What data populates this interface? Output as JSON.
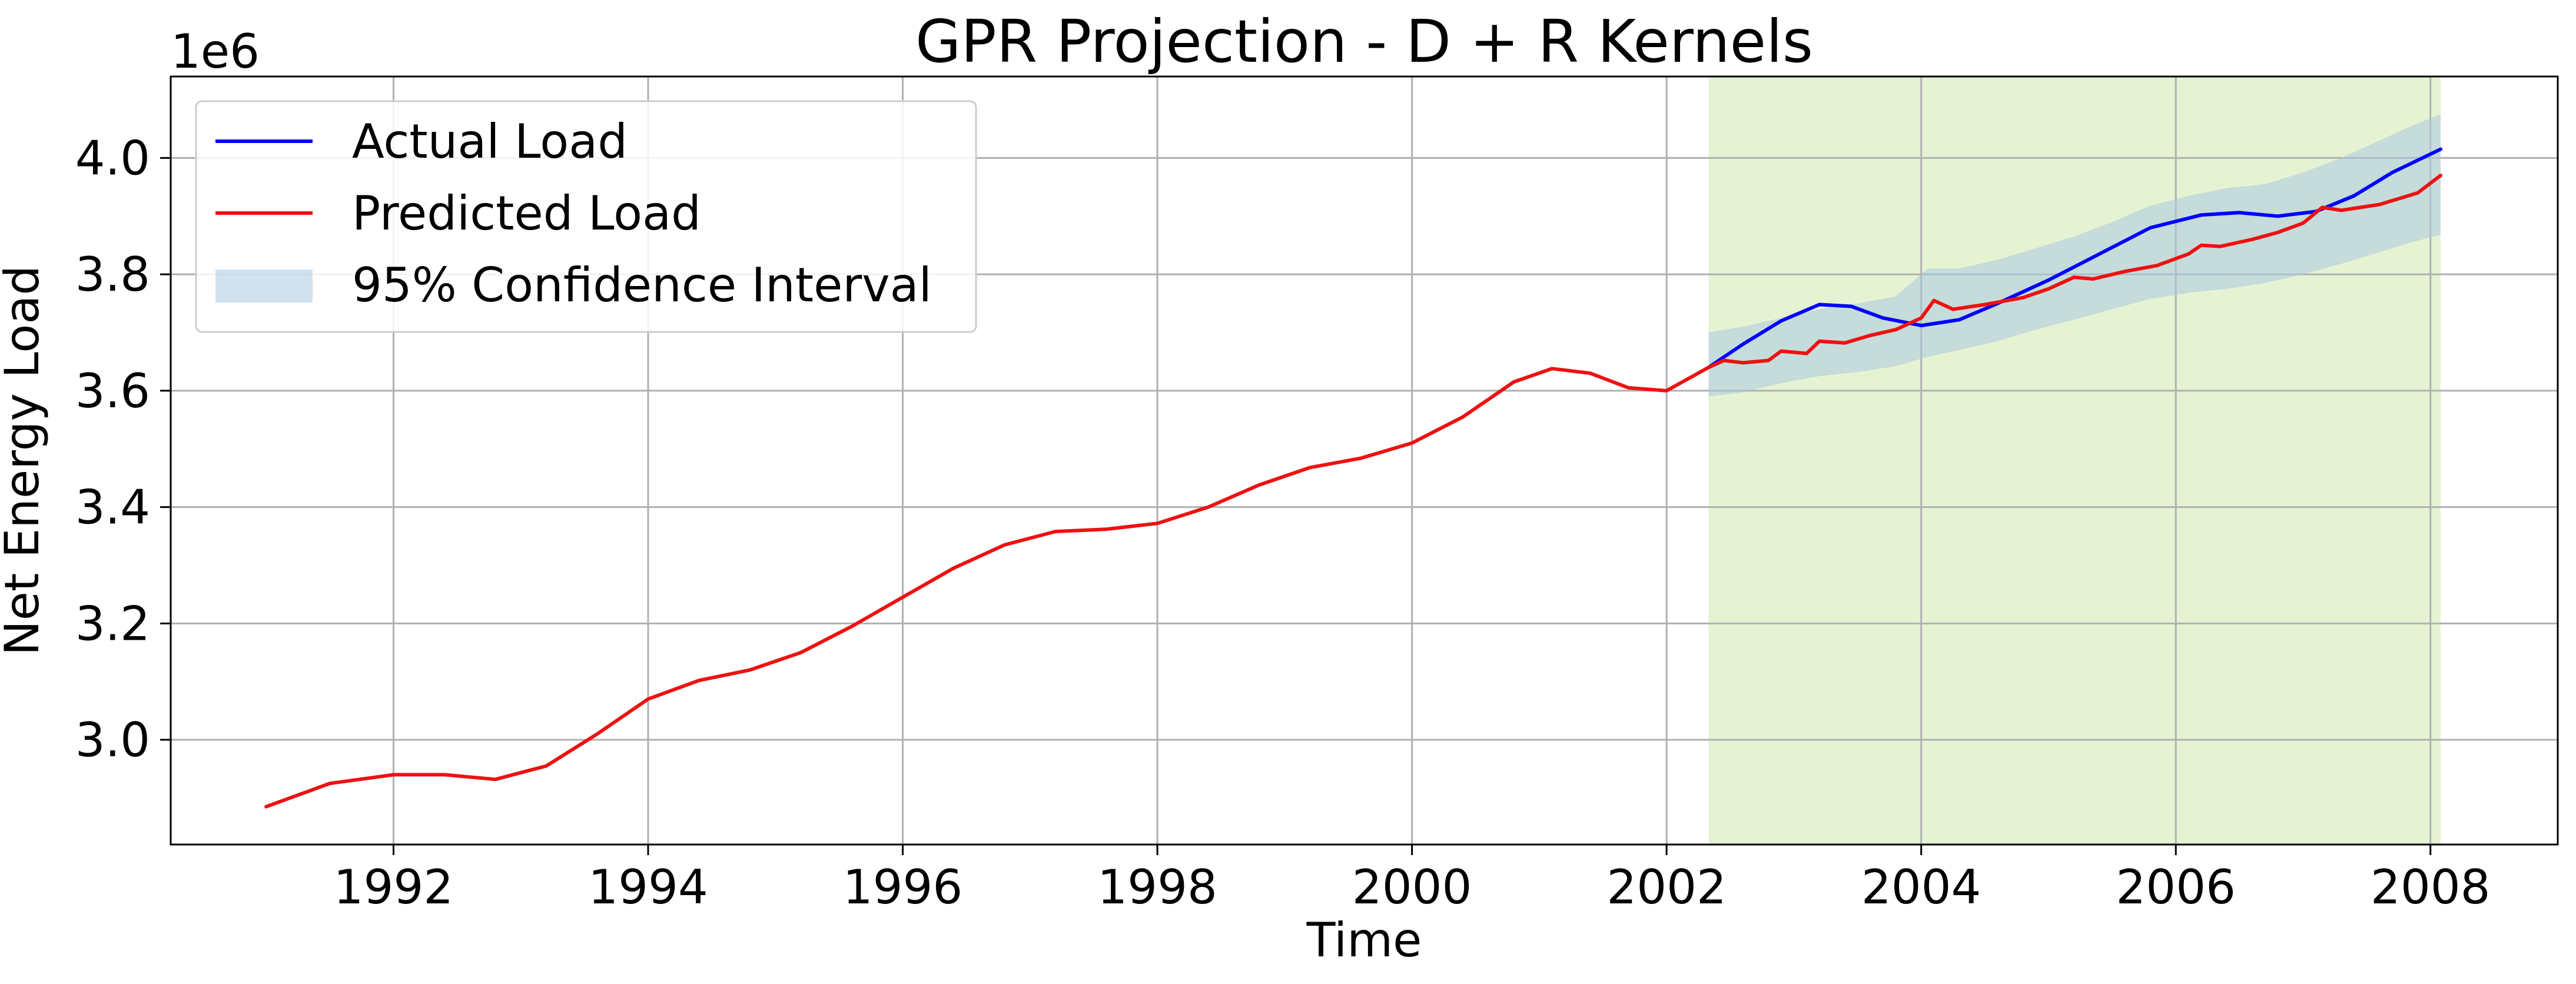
{
  "chart_data": {
    "type": "line",
    "title": "GPR Projection - D + R Kernels",
    "xlabel": "Time",
    "ylabel": "Net Energy Load",
    "y_offset_label": "1e6",
    "xlim": [
      1990.25,
      2009.0
    ],
    "ylim": [
      2820000,
      4140000
    ],
    "x_ticks": [
      1992,
      1994,
      1996,
      1998,
      2000,
      2002,
      2004,
      2006,
      2008
    ],
    "x_tick_labels": [
      "1992",
      "1994",
      "1996",
      "1998",
      "2000",
      "2002",
      "2004",
      "2006",
      "2008"
    ],
    "y_ticks": [
      3000000,
      3200000,
      3400000,
      3600000,
      3800000,
      4000000
    ],
    "y_tick_labels": [
      "3.0",
      "3.2",
      "3.4",
      "3.6",
      "3.8",
      "4.0"
    ],
    "grid": true,
    "legend_position": "upper-left",
    "forecast_region": {
      "x_start": 2002.33,
      "x_end": 2008.08,
      "color": "#e6f3d3"
    },
    "series": [
      {
        "name": "Actual Load",
        "color": "#0000ff",
        "points": [
          [
            2002.33,
            3640000
          ],
          [
            2002.6,
            3680000
          ],
          [
            2002.9,
            3720000
          ],
          [
            2003.2,
            3748000
          ],
          [
            2003.45,
            3745000
          ],
          [
            2003.7,
            3725000
          ],
          [
            2004.0,
            3712000
          ],
          [
            2004.3,
            3722000
          ],
          [
            2004.6,
            3750000
          ],
          [
            2005.0,
            3790000
          ],
          [
            2005.4,
            3835000
          ],
          [
            2005.8,
            3880000
          ],
          [
            2006.2,
            3902000
          ],
          [
            2006.5,
            3906000
          ],
          [
            2006.8,
            3900000
          ],
          [
            2007.1,
            3908000
          ],
          [
            2007.4,
            3935000
          ],
          [
            2007.7,
            3975000
          ],
          [
            2008.08,
            4015000
          ]
        ]
      },
      {
        "name": "Predicted Load",
        "color": "#ee1111",
        "points": [
          [
            1991.0,
            2885000
          ],
          [
            1991.5,
            2925000
          ],
          [
            1992.0,
            2940000
          ],
          [
            1992.4,
            2940000
          ],
          [
            1992.8,
            2932000
          ],
          [
            1993.2,
            2955000
          ],
          [
            1993.6,
            3010000
          ],
          [
            1994.0,
            3070000
          ],
          [
            1994.4,
            3102000
          ],
          [
            1994.8,
            3120000
          ],
          [
            1995.2,
            3150000
          ],
          [
            1995.6,
            3195000
          ],
          [
            1996.0,
            3245000
          ],
          [
            1996.4,
            3295000
          ],
          [
            1996.8,
            3335000
          ],
          [
            1997.2,
            3358000
          ],
          [
            1997.6,
            3362000
          ],
          [
            1998.0,
            3372000
          ],
          [
            1998.4,
            3400000
          ],
          [
            1998.8,
            3438000
          ],
          [
            1999.2,
            3468000
          ],
          [
            1999.6,
            3484000
          ],
          [
            2000.0,
            3510000
          ],
          [
            2000.4,
            3555000
          ],
          [
            2000.8,
            3615000
          ],
          [
            2001.1,
            3638000
          ],
          [
            2001.4,
            3630000
          ],
          [
            2001.7,
            3605000
          ],
          [
            2002.0,
            3600000
          ],
          [
            2002.33,
            3640000
          ],
          [
            2002.45,
            3652000
          ],
          [
            2002.6,
            3648000
          ],
          [
            2002.8,
            3652000
          ],
          [
            2002.9,
            3668000
          ],
          [
            2003.1,
            3664000
          ],
          [
            2003.2,
            3685000
          ],
          [
            2003.4,
            3682000
          ],
          [
            2003.6,
            3695000
          ],
          [
            2003.8,
            3705000
          ],
          [
            2004.0,
            3725000
          ],
          [
            2004.1,
            3755000
          ],
          [
            2004.25,
            3740000
          ],
          [
            2004.5,
            3748000
          ],
          [
            2004.8,
            3760000
          ],
          [
            2005.0,
            3775000
          ],
          [
            2005.2,
            3795000
          ],
          [
            2005.35,
            3792000
          ],
          [
            2005.6,
            3805000
          ],
          [
            2005.85,
            3815000
          ],
          [
            2006.1,
            3835000
          ],
          [
            2006.2,
            3850000
          ],
          [
            2006.35,
            3848000
          ],
          [
            2006.6,
            3860000
          ],
          [
            2006.8,
            3872000
          ],
          [
            2007.0,
            3888000
          ],
          [
            2007.15,
            3915000
          ],
          [
            2007.3,
            3910000
          ],
          [
            2007.6,
            3920000
          ],
          [
            2007.9,
            3940000
          ],
          [
            2008.08,
            3970000
          ]
        ]
      },
      {
        "name": "95% Confidence Interval",
        "color": "#a9c8e2",
        "type": "band",
        "x": [
          2002.33,
          2002.6,
          2002.9,
          2003.2,
          2003.5,
          2003.8,
          2004.05,
          2004.3,
          2004.6,
          2004.9,
          2005.2,
          2005.5,
          2005.8,
          2006.1,
          2006.4,
          2006.7,
          2007.0,
          2007.3,
          2007.6,
          2007.85,
          2008.08
        ],
        "lower": [
          3590000,
          3597000,
          3613000,
          3625000,
          3632000,
          3642000,
          3658000,
          3670000,
          3685000,
          3705000,
          3722000,
          3740000,
          3758000,
          3768000,
          3775000,
          3785000,
          3800000,
          3818000,
          3838000,
          3855000,
          3868000
        ],
        "upper": [
          3700000,
          3710000,
          3725000,
          3740000,
          3750000,
          3762000,
          3810000,
          3810000,
          3825000,
          3845000,
          3865000,
          3890000,
          3918000,
          3935000,
          3948000,
          3955000,
          3975000,
          4000000,
          4030000,
          4055000,
          4075000
        ]
      }
    ]
  }
}
